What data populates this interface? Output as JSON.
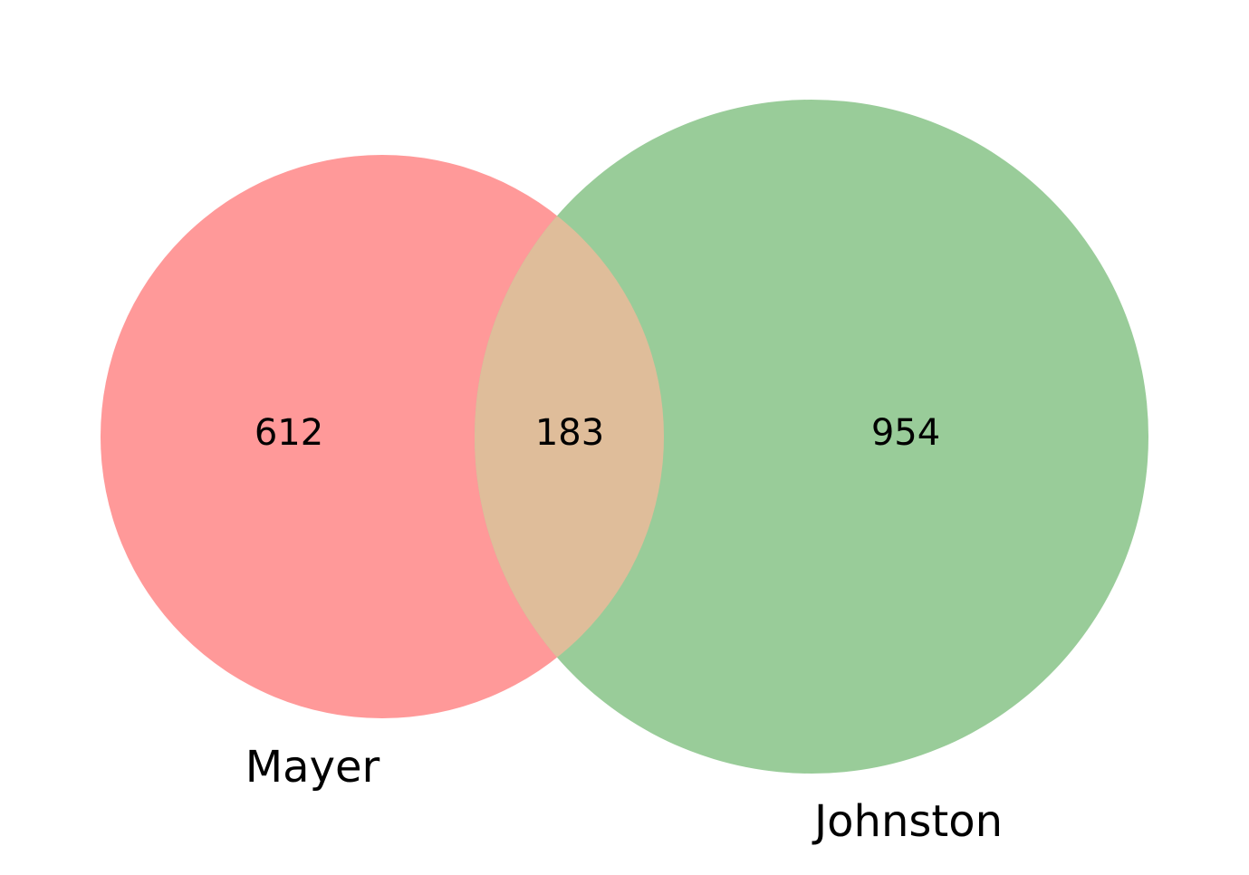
{
  "venn": {
    "sets": [
      {
        "key": "a",
        "label": "Mayer",
        "color": "#ff9999"
      },
      {
        "key": "b",
        "label": "Johnston",
        "color": "#99cc99"
      }
    ],
    "intersection_color": "#dfbd9a",
    "regions": {
      "a_only": "612",
      "both": "183",
      "b_only": "954"
    }
  }
}
